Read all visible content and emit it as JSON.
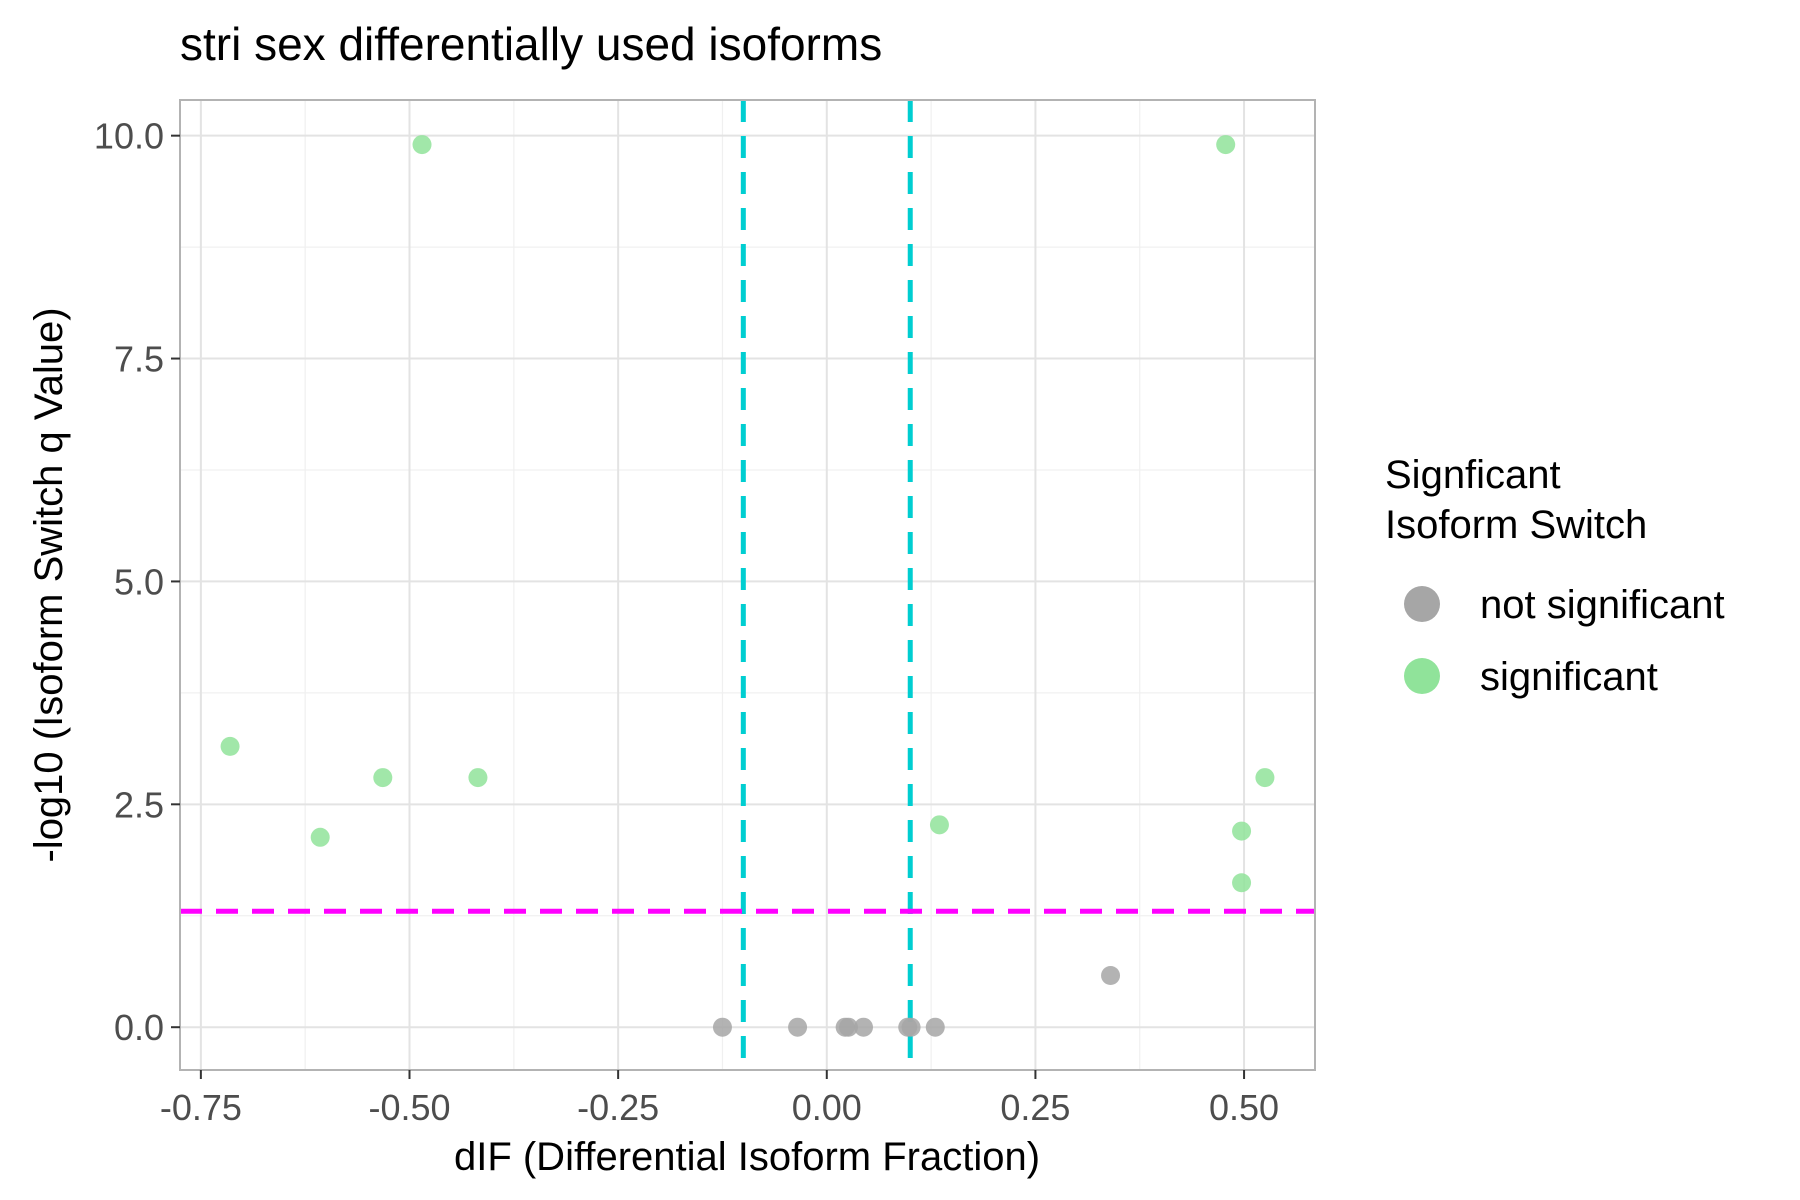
{
  "chart_data": {
    "type": "scatter",
    "title": "stri sex differentially used isoforms",
    "xlabel": "dIF (Differential Isoform Fraction)",
    "ylabel": "-log10 (Isoform Switch q Value)",
    "xlim": [
      -0.775,
      0.585
    ],
    "ylim": [
      -0.48,
      10.4
    ],
    "x_ticks": [
      -0.75,
      -0.5,
      -0.25,
      0.0,
      0.25,
      0.5
    ],
    "x_tick_labels": [
      "-0.75",
      "-0.50",
      "-0.25",
      "0.00",
      "0.25",
      "0.50"
    ],
    "y_ticks": [
      0.0,
      2.5,
      5.0,
      7.5,
      10.0
    ],
    "y_tick_labels": [
      "0.0",
      "2.5",
      "5.0",
      "7.5",
      "10.0"
    ],
    "grid": true,
    "reference_lines": [
      {
        "orientation": "vertical",
        "value": -0.1,
        "color": "#00CED1",
        "style": "dashed"
      },
      {
        "orientation": "vertical",
        "value": 0.1,
        "color": "#00CED1",
        "style": "dashed"
      },
      {
        "orientation": "horizontal",
        "value": 1.3,
        "color": "#FF00FF",
        "style": "dashed"
      }
    ],
    "legend": {
      "title_lines": [
        "Signficant",
        "Isoform Switch"
      ],
      "placement": "right"
    },
    "series": [
      {
        "name": "not significant",
        "color": "#a6a6a6",
        "points": [
          {
            "x": -0.125,
            "y": 0.0
          },
          {
            "x": -0.035,
            "y": 0.0
          },
          {
            "x": 0.022,
            "y": 0.0
          },
          {
            "x": 0.026,
            "y": 0.0
          },
          {
            "x": 0.044,
            "y": 0.0
          },
          {
            "x": 0.097,
            "y": 0.0
          },
          {
            "x": 0.101,
            "y": 0.0
          },
          {
            "x": 0.13,
            "y": 0.0
          },
          {
            "x": 0.34,
            "y": 0.58
          }
        ]
      },
      {
        "name": "significant",
        "color": "#90e39a",
        "points": [
          {
            "x": -0.715,
            "y": 3.15
          },
          {
            "x": -0.607,
            "y": 2.13
          },
          {
            "x": -0.532,
            "y": 2.8
          },
          {
            "x": -0.485,
            "y": 9.9
          },
          {
            "x": -0.418,
            "y": 2.8
          },
          {
            "x": 0.135,
            "y": 2.27
          },
          {
            "x": 0.478,
            "y": 9.9
          },
          {
            "x": 0.497,
            "y": 2.2
          },
          {
            "x": 0.497,
            "y": 1.62
          },
          {
            "x": 0.525,
            "y": 2.8
          }
        ]
      }
    ]
  }
}
